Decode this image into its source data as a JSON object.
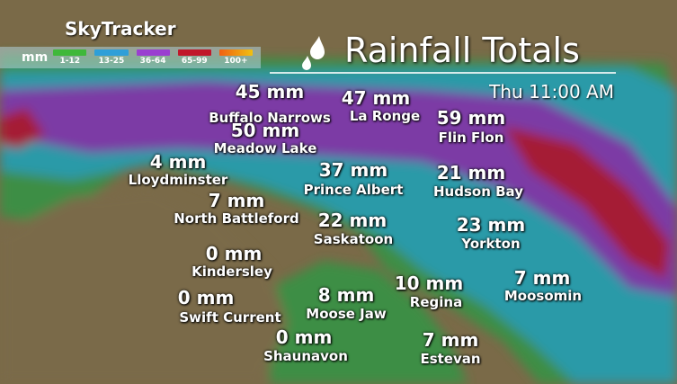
{
  "brand": "SkyTracker",
  "title": "Rainfall Totals",
  "time": "Thu 11:00 AM",
  "icon": "raindrops-icon",
  "legend": {
    "unit": "mm",
    "items": [
      {
        "label": "1-12",
        "color": "#3fb83a"
      },
      {
        "label": "13-25",
        "color": "#2f9fd8"
      },
      {
        "label": "36-64",
        "color": "#9a3fd0"
      },
      {
        "label": "65-99",
        "color": "#c0182a"
      },
      {
        "label": "100+",
        "color": "#f08a10"
      }
    ]
  },
  "locations": [
    {
      "city": "Buffalo Narrows",
      "value": "45 mm"
    },
    {
      "city": "La Ronge",
      "value": "47 mm"
    },
    {
      "city": "Flin Flon",
      "value": "59 mm"
    },
    {
      "city": "Meadow Lake",
      "value": "50 mm"
    },
    {
      "city": "Lloydminster",
      "value": "4 mm"
    },
    {
      "city": "Prince Albert",
      "value": "37 mm"
    },
    {
      "city": "Hudson Bay",
      "value": "21 mm"
    },
    {
      "city": "North Battleford",
      "value": "7 mm"
    },
    {
      "city": "Saskatoon",
      "value": "22 mm"
    },
    {
      "city": "Yorkton",
      "value": "23 mm"
    },
    {
      "city": "Kindersley",
      "value": "0 mm"
    },
    {
      "city": "Regina",
      "value": "10 mm"
    },
    {
      "city": "Moosomin",
      "value": "7 mm"
    },
    {
      "city": "Swift Current",
      "value": "0 mm"
    },
    {
      "city": "Moose Jaw",
      "value": "8 mm"
    },
    {
      "city": "Shaunavon",
      "value": "0 mm"
    },
    {
      "city": "Estevan",
      "value": "7 mm"
    }
  ]
}
